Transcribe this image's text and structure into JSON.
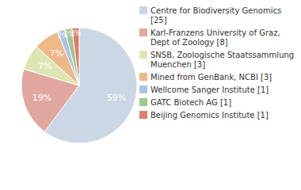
{
  "chart_data": {
    "type": "pie",
    "categories": [
      "Centre for Biodiversity Genomics [25]",
      "Karl-Franzens University of Graz, Dept of Zoology [8]",
      "SNSB, Zoologische Staatssammlung Muenchen [3]",
      "Mined from GenBank, NCBI [3]",
      "Wellcome Sanger Institute [1]",
      "GATC Biotech AG [1]",
      "Beijing Genomics Institute [1]"
    ],
    "values": [
      59,
      19,
      7,
      7,
      2,
      2,
      2
    ],
    "value_labels": [
      "59%",
      "19%",
      "7%",
      "7%",
      "2%",
      "2%",
      "2%"
    ],
    "colors": [
      "#cbd7e4",
      "#e1a79f",
      "#dde6b2",
      "#efb889",
      "#a9c3e6",
      "#a0c88c",
      "#e07d6c"
    ],
    "data_labels": true,
    "legend": "right"
  }
}
